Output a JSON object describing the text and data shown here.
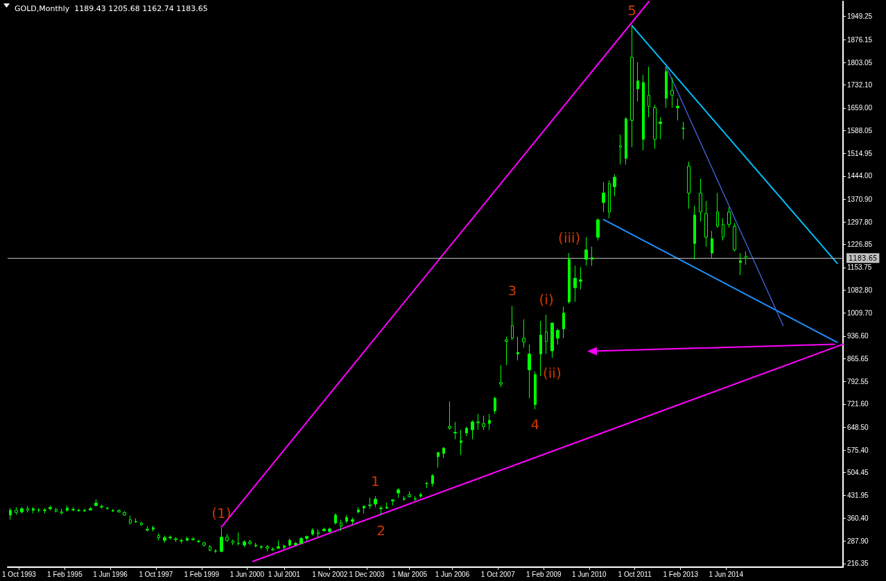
{
  "chart_data": {
    "type": "candlestick",
    "title": "GOLD,Monthly  1189.43 1205.68 1162.74 1183.65",
    "color": "#00ff00",
    "x": [
      "1993-07",
      "1993-09",
      "1993-11",
      "1994-01",
      "1994-03",
      "1994-05",
      "1994-07",
      "1994-09",
      "1994-11",
      "1995-01",
      "1995-03",
      "1995-05",
      "1995-07",
      "1995-09",
      "1995-11",
      "1996-01",
      "1996-03",
      "1996-05",
      "1996-07",
      "1996-09",
      "1996-11",
      "1997-01",
      "1997-03",
      "1997-05",
      "1997-07",
      "1997-09",
      "1997-11",
      "1998-01",
      "1998-03",
      "1998-05",
      "1998-07",
      "1998-09",
      "1998-11",
      "1999-01",
      "1999-03",
      "1999-05",
      "1999-07",
      "1999-09",
      "1999-11",
      "2000-01",
      "2000-03",
      "2000-05",
      "2000-07",
      "2000-09",
      "2000-11",
      "2001-01",
      "2001-03",
      "2001-05",
      "2001-07",
      "2001-09",
      "2001-11",
      "2002-01",
      "2002-03",
      "2002-05",
      "2002-07",
      "2002-09",
      "2002-11",
      "2003-01",
      "2003-03",
      "2003-05",
      "2003-07",
      "2003-09",
      "2003-11",
      "2004-01",
      "2004-03",
      "2004-05",
      "2004-07",
      "2004-09",
      "2004-11",
      "2005-01",
      "2005-03",
      "2005-05",
      "2005-07",
      "2005-09",
      "2005-11",
      "2006-01",
      "2006-03",
      "2006-05",
      "2006-07",
      "2006-09",
      "2006-11",
      "2007-01",
      "2007-03",
      "2007-05",
      "2007-07",
      "2007-09",
      "2007-11",
      "2008-01",
      "2008-03",
      "2008-05",
      "2008-07",
      "2008-09",
      "2008-11",
      "2009-01",
      "2009-03",
      "2009-05",
      "2009-07",
      "2009-09",
      "2009-11",
      "2010-01",
      "2010-03",
      "2010-05",
      "2010-07",
      "2010-09",
      "2010-11",
      "2011-01",
      "2011-03",
      "2011-05",
      "2011-07",
      "2011-09",
      "2011-11",
      "2012-01",
      "2012-03",
      "2012-05",
      "2012-07",
      "2012-09",
      "2012-11",
      "2013-01",
      "2013-03",
      "2013-05",
      "2013-07",
      "2013-09",
      "2013-11",
      "2014-01",
      "2014-03",
      "2014-05",
      "2014-07",
      "2014-09",
      "2014-11",
      "2015-01"
    ],
    "ohlc": [
      [
        370,
        392,
        355,
        385
      ],
      [
        385,
        395,
        370,
        378
      ],
      [
        380,
        395,
        375,
        390
      ],
      [
        390,
        398,
        378,
        385
      ],
      [
        385,
        395,
        375,
        390
      ],
      [
        385,
        392,
        378,
        386
      ],
      [
        386,
        392,
        375,
        384
      ],
      [
        390,
        400,
        385,
        394
      ],
      [
        388,
        392,
        378,
        382
      ],
      [
        380,
        390,
        372,
        376
      ],
      [
        385,
        400,
        380,
        392
      ],
      [
        388,
        395,
        382,
        386
      ],
      [
        385,
        390,
        380,
        384
      ],
      [
        383,
        390,
        380,
        385
      ],
      [
        386,
        395,
        384,
        390
      ],
      [
        400,
        420,
        398,
        408
      ],
      [
        398,
        403,
        390,
        395
      ],
      [
        392,
        396,
        388,
        390
      ],
      [
        383,
        388,
        380,
        385
      ],
      [
        384,
        388,
        378,
        380
      ],
      [
        378,
        382,
        368,
        370
      ],
      [
        355,
        368,
        340,
        345
      ],
      [
        350,
        360,
        345,
        348
      ],
      [
        345,
        348,
        335,
        340
      ],
      [
        325,
        335,
        318,
        322
      ],
      [
        325,
        336,
        318,
        330
      ],
      [
        305,
        312,
        290,
        298
      ],
      [
        290,
        305,
        282,
        298
      ],
      [
        298,
        305,
        292,
        300
      ],
      [
        295,
        300,
        285,
        292
      ],
      [
        290,
        295,
        280,
        288
      ],
      [
        290,
        302,
        288,
        296
      ],
      [
        295,
        300,
        288,
        292
      ],
      [
        287,
        292,
        282,
        286
      ],
      [
        282,
        285,
        270,
        275
      ],
      [
        270,
        275,
        255,
        258
      ],
      [
        256,
        262,
        250,
        255
      ],
      [
        255,
        328,
        252,
        300
      ],
      [
        300,
        310,
        285,
        290
      ],
      [
        288,
        292,
        275,
        282
      ],
      [
        280,
        315,
        274,
        280
      ],
      [
        275,
        290,
        268,
        285
      ],
      [
        285,
        292,
        275,
        280
      ],
      [
        275,
        282,
        268,
        272
      ],
      [
        268,
        275,
        262,
        270
      ],
      [
        270,
        275,
        255,
        265
      ],
      [
        262,
        268,
        256,
        260
      ],
      [
        265,
        290,
        262,
        270
      ],
      [
        268,
        275,
        262,
        272
      ],
      [
        275,
        295,
        270,
        290
      ],
      [
        276,
        285,
        272,
        280
      ],
      [
        280,
        300,
        278,
        296
      ],
      [
        296,
        305,
        288,
        302
      ],
      [
        310,
        328,
        305,
        322
      ],
      [
        315,
        325,
        300,
        310
      ],
      [
        320,
        330,
        318,
        325
      ],
      [
        318,
        330,
        315,
        326
      ],
      [
        345,
        375,
        340,
        370
      ],
      [
        345,
        355,
        320,
        335
      ],
      [
        350,
        370,
        345,
        362
      ],
      [
        350,
        362,
        340,
        355
      ],
      [
        380,
        395,
        375,
        386
      ],
      [
        392,
        400,
        375,
        398
      ],
      [
        400,
        425,
        390,
        402
      ],
      [
        405,
        430,
        395,
        420
      ],
      [
        390,
        400,
        370,
        392
      ],
      [
        392,
        410,
        390,
        395
      ],
      [
        415,
        420,
        400,
        418
      ],
      [
        440,
        455,
        425,
        450
      ],
      [
        422,
        430,
        415,
        420
      ],
      [
        434,
        445,
        425,
        428
      ],
      [
        422,
        430,
        415,
        420
      ],
      [
        430,
        440,
        425,
        435
      ],
      [
        470,
        475,
        455,
        470
      ],
      [
        470,
        500,
        460,
        495
      ],
      [
        555,
        570,
        520,
        568
      ],
      [
        565,
        585,
        550,
        582
      ],
      [
        650,
        730,
        640,
        645
      ],
      [
        630,
        665,
        610,
        632
      ],
      [
        600,
        640,
        560,
        605
      ],
      [
        630,
        650,
        620,
        645
      ],
      [
        640,
        670,
        610,
        665
      ],
      [
        665,
        690,
        640,
        662
      ],
      [
        660,
        685,
        640,
        650
      ],
      [
        660,
        690,
        640,
        670
      ],
      [
        700,
        745,
        690,
        740
      ],
      [
        790,
        845,
        775,
        785
      ],
      [
        925,
        935,
        845,
        920
      ],
      [
        970,
        1032,
        925,
        930
      ],
      [
        880,
        935,
        860,
        885
      ],
      [
        930,
        990,
        900,
        918
      ],
      [
        830,
        910,
        740,
        880
      ],
      [
        720,
        825,
        705,
        815
      ],
      [
        880,
        985,
        810,
        940
      ],
      [
        950,
        1005,
        880,
        920
      ],
      [
        890,
        980,
        868,
        978
      ],
      [
        930,
        960,
        910,
        955
      ],
      [
        960,
        1030,
        930,
        1010
      ],
      [
        1045,
        1200,
        1040,
        1180
      ],
      [
        1090,
        1160,
        1045,
        1120
      ],
      [
        1110,
        1155,
        1085,
        1115
      ],
      [
        1180,
        1250,
        1160,
        1210
      ],
      [
        1180,
        1220,
        1160,
        1185
      ],
      [
        1250,
        1310,
        1240,
        1305
      ],
      [
        1360,
        1425,
        1330,
        1390
      ],
      [
        1420,
        1430,
        1310,
        1330
      ],
      [
        1410,
        1450,
        1380,
        1440
      ],
      [
        1540,
        1575,
        1480,
        1535
      ],
      [
        1500,
        1630,
        1480,
        1625
      ],
      [
        1820,
        1920,
        1535,
        1620
      ],
      [
        1720,
        1805,
        1680,
        1745
      ],
      [
        1560,
        1765,
        1525,
        1740
      ],
      [
        1700,
        1790,
        1630,
        1665
      ],
      [
        1660,
        1670,
        1530,
        1560
      ],
      [
        1610,
        1630,
        1560,
        1615
      ],
      [
        1690,
        1790,
        1660,
        1775
      ],
      [
        1715,
        1755,
        1660,
        1700
      ],
      [
        1660,
        1690,
        1620,
        1665
      ],
      [
        1595,
        1615,
        1560,
        1595
      ],
      [
        1475,
        1490,
        1340,
        1390
      ],
      [
        1230,
        1350,
        1180,
        1320
      ],
      [
        1390,
        1435,
        1300,
        1330
      ],
      [
        1325,
        1365,
        1220,
        1250
      ],
      [
        1200,
        1270,
        1185,
        1245
      ],
      [
        1330,
        1390,
        1280,
        1285
      ],
      [
        1290,
        1310,
        1240,
        1250
      ],
      [
        1330,
        1345,
        1280,
        1290
      ],
      [
        1285,
        1295,
        1205,
        1210
      ],
      [
        1170,
        1200,
        1130,
        1175
      ],
      [
        1189.43,
        1205.68,
        1162.74,
        1183.65
      ]
    ],
    "series": [
      {
        "type": "line",
        "color": "#ff00ff",
        "x": [
          "1999-09",
          "2012-03"
        ],
        "values": [
          332,
          1997
        ],
        "line_style": "solid",
        "marker": "none"
      },
      {
        "type": "line",
        "color": "#ff00ff",
        "x": [
          "2000-08",
          "2017-11"
        ],
        "values": [
          223,
          911
        ],
        "line_style": "solid",
        "marker": "none"
      },
      {
        "type": "line",
        "color": "#00bfff",
        "x": [
          "2011-09",
          "2017-09"
        ],
        "values": [
          1920,
          1167
        ],
        "line_style": "solid",
        "marker": "none"
      },
      {
        "type": "line",
        "color": "#1e90ff",
        "x": [
          "2010-11",
          "2017-09"
        ],
        "values": [
          1306,
          917
        ],
        "line_style": "solid",
        "marker": "none"
      },
      {
        "type": "line",
        "color": "#4169e1",
        "x": [
          "2012-09",
          "2016-02"
        ],
        "values": [
          1790,
          970
        ],
        "line_style": "dotted",
        "marker": "none"
      },
      {
        "type": "line",
        "color": "#ff00ff",
        "x": [
          "2017-08",
          "2010-07"
        ],
        "values": [
          911,
          889
        ],
        "line_style": "solid",
        "marker": "triangle"
      }
    ],
    "annotations": [
      {
        "text": "(1)",
        "x": "1999-09",
        "y": 328
      },
      {
        "text": "1",
        "x": "2004-03",
        "y": 430
      },
      {
        "text": "2",
        "x": "2004-05",
        "y": 370
      },
      {
        "text": "3",
        "x": "2008-03",
        "y": 1032
      },
      {
        "text": "4",
        "x": "2008-11",
        "y": 705
      },
      {
        "text": "5",
        "x": "2011-09",
        "y": 1920
      },
      {
        "text": "(i)",
        "x": "2009-03",
        "y": 1005
      },
      {
        "text": "(ii)",
        "x": "2009-05",
        "y": 868
      },
      {
        "text": "(iii)",
        "x": "2009-11",
        "y": 1200
      }
    ],
    "ref_lines": [
      {
        "axis": "y",
        "value": 1183.65,
        "label": "1183.65",
        "color": "#c0c0c0"
      }
    ],
    "xlim": [
      "1993-06",
      "2017-11"
    ],
    "xticks": [
      {
        "value": "1993-10",
        "label": "1 Oct 1993"
      },
      {
        "value": "1995-02",
        "label": "1 Feb 1995"
      },
      {
        "value": "1996-06",
        "label": "1 Jun 1996"
      },
      {
        "value": "1997-10",
        "label": "1 Oct 1997"
      },
      {
        "value": "1999-02",
        "label": "1 Feb 1999"
      },
      {
        "value": "2000-06",
        "label": "1 Jun 2000"
      },
      {
        "value": "2001-07",
        "label": "1 Jul 2001"
      },
      {
        "value": "2002-11",
        "label": "1 Nov 2002"
      },
      {
        "value": "2003-12",
        "label": "1 Dec 2003"
      },
      {
        "value": "2005-03",
        "label": "1 Mar 2005"
      },
      {
        "value": "2006-06",
        "label": "1 Jun 2006"
      },
      {
        "value": "2007-10",
        "label": "1 Oct 2007"
      },
      {
        "value": "2009-02",
        "label": "1 Feb 2009"
      },
      {
        "value": "2010-06",
        "label": "1 Jun 2010"
      },
      {
        "value": "2011-10",
        "label": "1 Oct 2011"
      },
      {
        "value": "2013-02",
        "label": "1 Feb 2013"
      },
      {
        "value": "2014-06",
        "label": "1 Jun 2014"
      }
    ],
    "ylim": [
      205,
      1997
    ],
    "yticks": [
      216.35,
      {
        "value": 287.9,
        "label": "287.90"
      },
      {
        "value": 360.4,
        "label": "360.40"
      },
      431.95,
      504.45,
      {
        "value": 575.4,
        "label": "575.40"
      },
      {
        "value": 648.5,
        "label": "648.50"
      },
      {
        "value": 721.6,
        "label": "721.60"
      },
      792.55,
      865.65,
      {
        "value": 936.6,
        "label": "936.60"
      },
      {
        "value": 1009.7,
        "label": "1009.70"
      },
      {
        "value": 1082.8,
        "label": "1082.80"
      },
      1153.75,
      1226.85,
      {
        "value": 1297.8,
        "label": "1297.80"
      },
      {
        "value": 1370.9,
        "label": "1370.90"
      },
      {
        "value": 1444,
        "label": "1444.00"
      },
      1514.95,
      1588.05,
      {
        "value": 1659,
        "label": "1659.00"
      },
      {
        "value": 1732.1,
        "label": "1732.10"
      },
      1803.05,
      1876.15,
      1949.25
    ],
    "grid": false
  }
}
